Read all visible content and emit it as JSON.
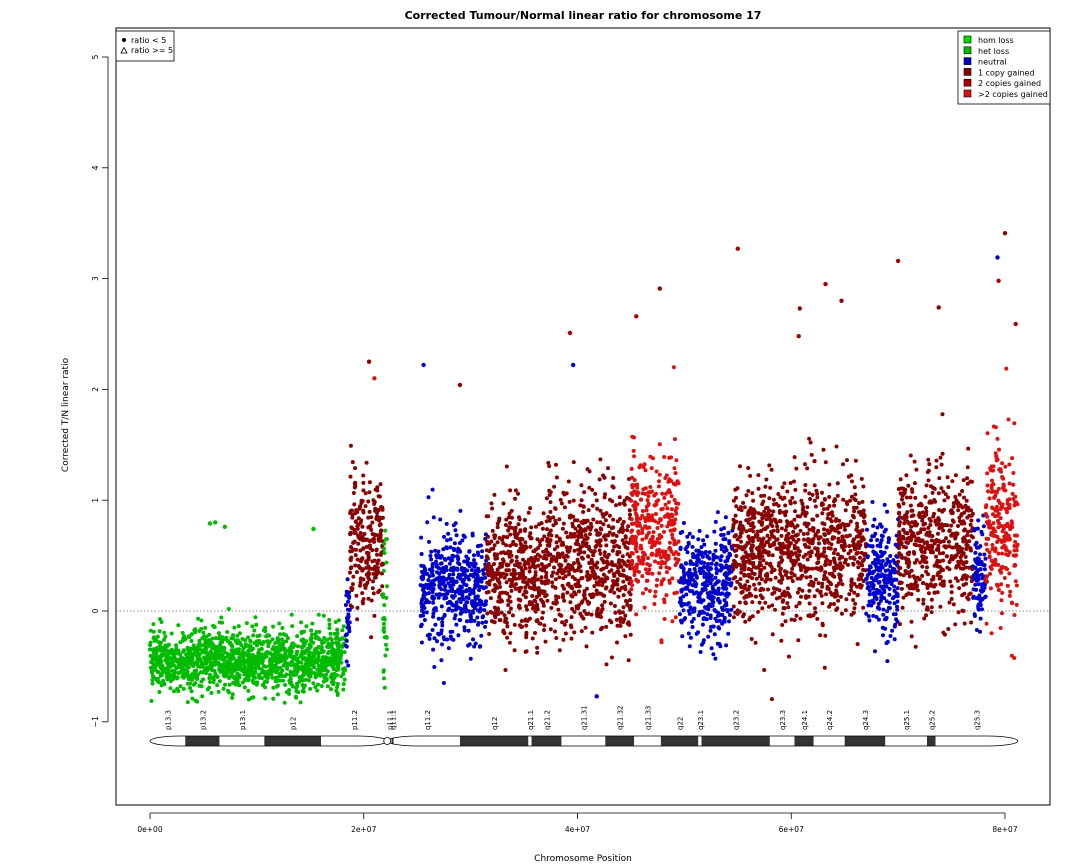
{
  "chart_data": {
    "type": "scatter",
    "title": "Corrected Tumour/Normal linear ratio for chromosome  17",
    "xlabel": "Chromosome Position",
    "ylabel": "Corrected T/N linear ratio",
    "xlim": [
      0,
      81195210
    ],
    "ylim": [
      -1.8,
      5.25
    ],
    "xticks": [
      {
        "value": 0,
        "label": "0e+00"
      },
      {
        "value": 20000000,
        "label": "2e+07"
      },
      {
        "value": 40000000,
        "label": "4e+07"
      },
      {
        "value": 60000000,
        "label": "6e+07"
      },
      {
        "value": 80000000,
        "label": "8e+07"
      }
    ],
    "yticks": [
      {
        "value": -1,
        "label": "−1"
      },
      {
        "value": 0,
        "label": "0"
      },
      {
        "value": 1,
        "label": "1"
      },
      {
        "value": 2,
        "label": "2"
      },
      {
        "value": 3,
        "label": "3"
      },
      {
        "value": 4,
        "label": "4"
      },
      {
        "value": 5,
        "label": "5"
      }
    ],
    "reference_line": {
      "y": 0,
      "style": "dotted"
    },
    "legend_shapes": {
      "placement": "top-left",
      "entries": [
        {
          "symbol": "filled-circle",
          "label": "ratio < 5"
        },
        {
          "symbol": "open-triangle",
          "label": "ratio >= 5"
        }
      ]
    },
    "legend_status": {
      "placement": "top-right",
      "entries": [
        {
          "label": "hom loss",
          "color": "#00dd00"
        },
        {
          "label": "het loss",
          "color": "#00bb00"
        },
        {
          "label": "neutral",
          "color": "#0000cc"
        },
        {
          "label": "1 copy gained",
          "color": "#880000"
        },
        {
          "label": "2 copies gained",
          "color": "#aa0000"
        },
        {
          "label": ">2 copies gained",
          "color": "#dd1111"
        }
      ]
    },
    "segments": [
      {
        "start": 0,
        "end": 18300000,
        "status": "het loss",
        "color": "#00bb00",
        "median": -0.45,
        "spread": 0.14
      },
      {
        "start": 18300000,
        "end": 18700000,
        "status": "neutral",
        "color": "#0000cc",
        "median": -0.15,
        "spread": 0.2
      },
      {
        "start": 18700000,
        "end": 21800000,
        "status": "1 copy gained",
        "color": "#880000",
        "median": 0.6,
        "spread": 0.3
      },
      {
        "start": 21800000,
        "end": 22200000,
        "status": "het loss",
        "color": "#00bb00",
        "median": 0.0,
        "spread": 0.35
      },
      {
        "start": 25300000,
        "end": 31500000,
        "status": "neutral",
        "color": "#0000cc",
        "median": 0.2,
        "spread": 0.25
      },
      {
        "start": 31500000,
        "end": 37000000,
        "status": "1 copy gained",
        "color": "#880000",
        "median": 0.35,
        "spread": 0.3
      },
      {
        "start": 37000000,
        "end": 45000000,
        "status": "1 copy gained",
        "color": "#880000",
        "median": 0.45,
        "spread": 0.32
      },
      {
        "start": 45000000,
        "end": 49500000,
        "status": ">2 copies gained",
        "color": "#dd1111",
        "median": 0.7,
        "spread": 0.35
      },
      {
        "start": 49500000,
        "end": 54500000,
        "status": "neutral",
        "color": "#0000cc",
        "median": 0.25,
        "spread": 0.25
      },
      {
        "start": 54500000,
        "end": 67000000,
        "status": "1 copy gained",
        "color": "#880000",
        "median": 0.55,
        "spread": 0.32
      },
      {
        "start": 67000000,
        "end": 70000000,
        "status": "neutral",
        "color": "#0000cc",
        "median": 0.3,
        "spread": 0.25
      },
      {
        "start": 70000000,
        "end": 77000000,
        "status": "1 copy gained",
        "color": "#880000",
        "median": 0.6,
        "spread": 0.33
      },
      {
        "start": 77000000,
        "end": 78200000,
        "status": "neutral",
        "color": "#0000cc",
        "median": 0.3,
        "spread": 0.25
      },
      {
        "start": 78200000,
        "end": 81195210,
        "status": ">2 copies gained",
        "color": "#dd1111",
        "median": 0.75,
        "spread": 0.38
      }
    ],
    "notable_points": [
      {
        "x": 5600000,
        "y": 0.79,
        "color": "#00bb00"
      },
      {
        "x": 6100000,
        "y": 0.8,
        "color": "#00bb00"
      },
      {
        "x": 7000000,
        "y": 0.76,
        "color": "#00bb00"
      },
      {
        "x": 15300000,
        "y": 0.74,
        "color": "#00bb00"
      },
      {
        "x": 20500000,
        "y": 2.25,
        "color": "#880000"
      },
      {
        "x": 21000000,
        "y": 2.1,
        "color": "#dd1111"
      },
      {
        "x": 25600000,
        "y": 2.22,
        "color": "#0000cc"
      },
      {
        "x": 29000000,
        "y": 2.04,
        "color": "#880000"
      },
      {
        "x": 39300000,
        "y": 2.51,
        "color": "#aa0000"
      },
      {
        "x": 39600000,
        "y": 2.22,
        "color": "#0000cc"
      },
      {
        "x": 41800000,
        "y": -0.77,
        "color": "#0000cc"
      },
      {
        "x": 45500000,
        "y": 2.66,
        "color": "#aa0000"
      },
      {
        "x": 47700000,
        "y": 2.91,
        "color": "#880000"
      },
      {
        "x": 55000000,
        "y": 3.27,
        "color": "#aa0000"
      },
      {
        "x": 60700000,
        "y": 2.48,
        "color": "#aa0000"
      },
      {
        "x": 60800000,
        "y": 2.73,
        "color": "#880000"
      },
      {
        "x": 63200000,
        "y": 2.95,
        "color": "#aa0000"
      },
      {
        "x": 64700000,
        "y": 2.8,
        "color": "#880000"
      },
      {
        "x": 70000000,
        "y": 3.16,
        "color": "#aa0000"
      },
      {
        "x": 73800000,
        "y": 2.74,
        "color": "#880000"
      },
      {
        "x": 79300000,
        "y": 3.19,
        "color": "#0000cc"
      },
      {
        "x": 80000000,
        "y": 3.41,
        "color": "#880000"
      },
      {
        "x": 79400000,
        "y": 2.98,
        "color": "#aa0000"
      },
      {
        "x": 81000000,
        "y": 2.59,
        "color": "#aa0000"
      }
    ],
    "ideogram": {
      "centromere": 22200000,
      "bands": [
        {
          "name": "p13.3",
          "start": 0,
          "end": 3300000,
          "stain": "white"
        },
        {
          "name": "p13.2",
          "start": 3300000,
          "end": 6500000,
          "stain": "dark"
        },
        {
          "name": "p13.1",
          "start": 6500000,
          "end": 10700000,
          "stain": "white"
        },
        {
          "name": "p12",
          "start": 10700000,
          "end": 16000000,
          "stain": "dark"
        },
        {
          "name": "p11.2",
          "start": 16000000,
          "end": 22200000,
          "stain": "white"
        },
        {
          "name": "p11.1",
          "start": 22200000,
          "end": 22600000,
          "stain": "white"
        },
        {
          "name": "q11.1",
          "start": 22600000,
          "end": 22800000,
          "stain": "dark"
        },
        {
          "name": "q11.2",
          "start": 22800000,
          "end": 29000000,
          "stain": "white"
        },
        {
          "name": "q12",
          "start": 29000000,
          "end": 35400000,
          "stain": "dark"
        },
        {
          "name": "q21.1",
          "start": 35400000,
          "end": 35700000,
          "stain": "white"
        },
        {
          "name": "q21.2",
          "start": 35700000,
          "end": 38500000,
          "stain": "dark"
        },
        {
          "name": "q21.31",
          "start": 38500000,
          "end": 42600000,
          "stain": "white"
        },
        {
          "name": "q21.32",
          "start": 42600000,
          "end": 45300000,
          "stain": "dark"
        },
        {
          "name": "q21.33",
          "start": 45300000,
          "end": 47800000,
          "stain": "white"
        },
        {
          "name": "q22",
          "start": 47800000,
          "end": 51300000,
          "stain": "dark"
        },
        {
          "name": "q23.1",
          "start": 51300000,
          "end": 51600000,
          "stain": "white"
        },
        {
          "name": "q23.2",
          "start": 51600000,
          "end": 58000000,
          "stain": "dark"
        },
        {
          "name": "q23.3",
          "start": 58000000,
          "end": 60300000,
          "stain": "white"
        },
        {
          "name": "q24.1",
          "start": 60300000,
          "end": 62100000,
          "stain": "dark"
        },
        {
          "name": "q24.2",
          "start": 62100000,
          "end": 65000000,
          "stain": "white"
        },
        {
          "name": "q24.3",
          "start": 65000000,
          "end": 68800000,
          "stain": "dark"
        },
        {
          "name": "q25.1",
          "start": 68800000,
          "end": 72700000,
          "stain": "white"
        },
        {
          "name": "q25.2",
          "start": 72700000,
          "end": 73500000,
          "stain": "dark"
        },
        {
          "name": "q25.3",
          "start": 73500000,
          "end": 81195210,
          "stain": "white"
        }
      ]
    }
  }
}
